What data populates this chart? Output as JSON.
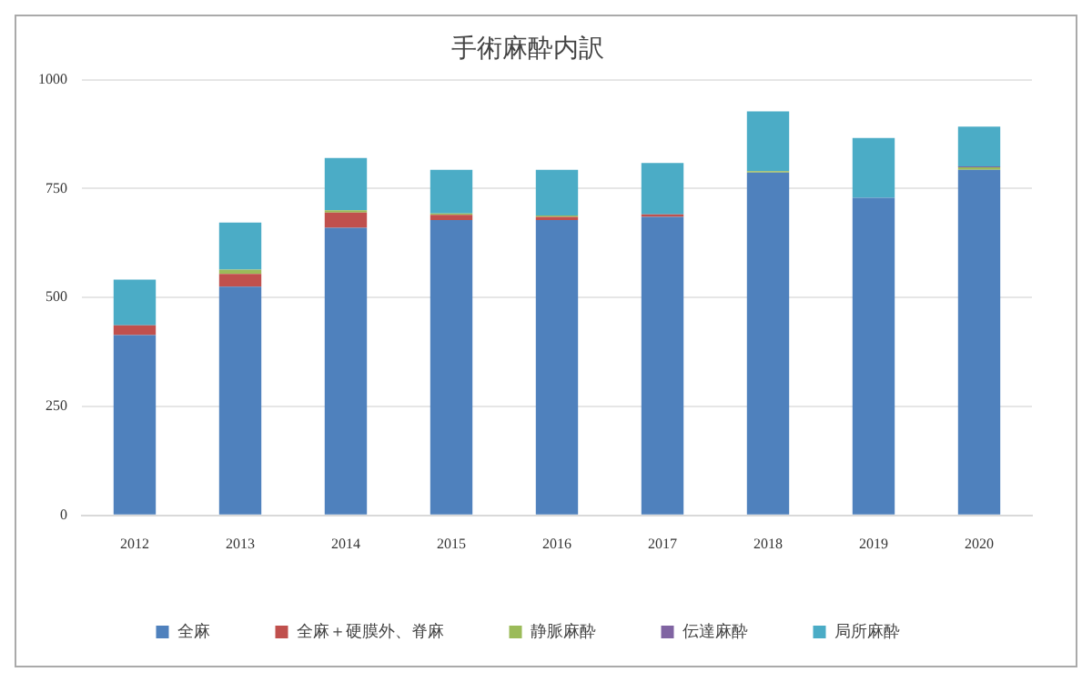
{
  "chart_data": {
    "type": "bar",
    "title": "手術麻酔内訳",
    "categories": [
      "2012",
      "2013",
      "2014",
      "2015",
      "2016",
      "2017",
      "2018",
      "2019",
      "2020"
    ],
    "stacked": true,
    "ylim": [
      0,
      1000
    ],
    "yticks": [
      0,
      250,
      500,
      750,
      1000
    ],
    "grid": "y",
    "legend": "bottom",
    "series": [
      {
        "name": "全麻",
        "color": "#4f81bd",
        "values": [
          414,
          525,
          660,
          678,
          678,
          685,
          787,
          729,
          793
        ]
      },
      {
        "name": "全麻＋硬膜外、脊麻",
        "color": "#c0504d",
        "values": [
          22,
          29,
          35,
          12,
          7,
          6,
          0,
          0,
          0
        ]
      },
      {
        "name": "静脈麻酔",
        "color": "#9bbb59",
        "values": [
          0,
          10,
          5,
          3,
          3,
          0,
          3,
          0,
          6
        ]
      },
      {
        "name": "伝達麻酔",
        "color": "#8064a2",
        "values": [
          0,
          0,
          0,
          0,
          0,
          0,
          0,
          0,
          2
        ]
      },
      {
        "name": "局所麻酔",
        "color": "#4bacc6",
        "values": [
          105,
          108,
          120,
          100,
          105,
          118,
          137,
          137,
          91
        ]
      }
    ]
  }
}
